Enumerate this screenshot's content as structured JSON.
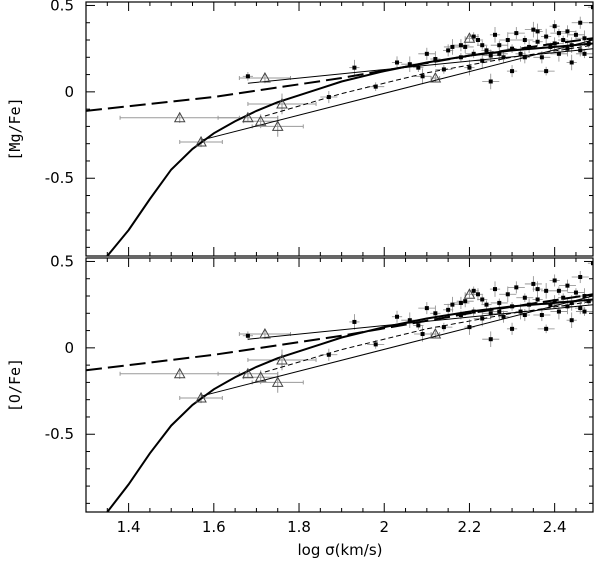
{
  "chart_data": [
    {
      "type": "scatter",
      "ylabel": "[Mg/Fe]",
      "xlim": [
        1.3,
        2.49
      ],
      "ylim": [
        -0.95,
        0.52
      ],
      "xticks": [
        "1.4",
        "1.6",
        "1.8",
        "2",
        "2.2",
        "2.4"
      ],
      "yticks": [
        "0.5",
        "0",
        "-0.5"
      ],
      "yticks_values": [
        0.5,
        0,
        -0.5
      ],
      "triangles": [
        {
          "x": 1.52,
          "y": -0.15,
          "xerr": 0.14,
          "yerr": 0.03
        },
        {
          "x": 1.57,
          "y": -0.29,
          "xerr": 0.05,
          "yerr": 0.03
        },
        {
          "x": 1.68,
          "y": -0.15,
          "xerr": 0.07,
          "yerr": 0.02
        },
        {
          "x": 1.71,
          "y": -0.17,
          "xerr": 0.04,
          "yerr": 0.04
        },
        {
          "x": 1.72,
          "y": 0.08,
          "xerr": 0.06,
          "yerr": 0.03
        },
        {
          "x": 1.75,
          "y": -0.2,
          "xerr": 0.06,
          "yerr": 0.06
        },
        {
          "x": 1.76,
          "y": -0.07,
          "xerr": 0.08,
          "yerr": 0.06
        },
        {
          "x": 2.12,
          "y": 0.08,
          "xerr": 0.01,
          "yerr": 0.02
        },
        {
          "x": 2.2,
          "y": 0.31,
          "xerr": 0.01,
          "yerr": 0.02
        }
      ],
      "points": [
        [
          1.68,
          0.09
        ],
        [
          1.87,
          -0.03
        ],
        [
          1.93,
          0.14
        ],
        [
          1.98,
          0.03
        ],
        [
          2.03,
          0.17
        ],
        [
          2.06,
          0.16
        ],
        [
          2.08,
          0.14
        ],
        [
          2.1,
          0.22
        ],
        [
          2.12,
          0.19
        ],
        [
          2.14,
          0.13
        ],
        [
          2.15,
          0.24
        ],
        [
          2.16,
          0.26
        ],
        [
          2.18,
          0.2
        ],
        [
          2.19,
          0.26
        ],
        [
          2.2,
          0.14
        ],
        [
          2.21,
          0.22
        ],
        [
          2.22,
          0.3
        ],
        [
          2.23,
          0.18
        ],
        [
          2.24,
          0.24
        ],
        [
          2.25,
          0.21
        ],
        [
          2.26,
          0.33
        ],
        [
          2.27,
          0.27
        ],
        [
          2.28,
          0.2
        ],
        [
          2.29,
          0.3
        ],
        [
          2.3,
          0.25
        ],
        [
          2.31,
          0.34
        ],
        [
          2.32,
          0.22
        ],
        [
          2.33,
          0.3
        ],
        [
          2.34,
          0.26
        ],
        [
          2.35,
          0.36
        ],
        [
          2.36,
          0.29
        ],
        [
          2.37,
          0.2
        ],
        [
          2.38,
          0.32
        ],
        [
          2.39,
          0.26
        ],
        [
          2.4,
          0.38
        ],
        [
          2.41,
          0.22
        ],
        [
          2.42,
          0.3
        ],
        [
          2.43,
          0.35
        ],
        [
          2.44,
          0.27
        ],
        [
          2.45,
          0.33
        ],
        [
          2.46,
          0.24
        ],
        [
          2.47,
          0.31
        ],
        [
          2.48,
          0.28
        ],
        [
          2.46,
          0.4
        ],
        [
          2.44,
          0.17
        ],
        [
          2.38,
          0.12
        ],
        [
          2.3,
          0.12
        ],
        [
          2.25,
          0.06
        ],
        [
          2.21,
          0.32
        ],
        [
          2.18,
          0.27
        ],
        [
          2.36,
          0.35
        ],
        [
          2.41,
          0.34
        ],
        [
          2.33,
          0.2
        ],
        [
          2.27,
          0.22
        ],
        [
          2.23,
          0.27
        ],
        [
          2.4,
          0.28
        ],
        [
          2.43,
          0.25
        ],
        [
          2.47,
          0.22
        ],
        [
          2.49,
          0.49
        ],
        [
          2.09,
          0.09
        ]
      ],
      "curve_thick": [
        [
          1.35,
          -0.95
        ],
        [
          1.4,
          -0.8
        ],
        [
          1.45,
          -0.62
        ],
        [
          1.5,
          -0.45
        ],
        [
          1.55,
          -0.33
        ],
        [
          1.6,
          -0.24
        ],
        [
          1.65,
          -0.17
        ],
        [
          1.7,
          -0.11
        ],
        [
          1.75,
          -0.06
        ],
        [
          1.8,
          -0.02
        ],
        [
          1.85,
          0.02
        ],
        [
          1.9,
          0.06
        ],
        [
          2.0,
          0.12
        ],
        [
          2.1,
          0.17
        ],
        [
          2.2,
          0.21
        ],
        [
          2.3,
          0.24
        ],
        [
          2.4,
          0.26
        ],
        [
          2.49,
          0.28
        ]
      ],
      "dashed_long": [
        [
          1.3,
          -0.11
        ],
        [
          1.6,
          -0.03
        ],
        [
          1.9,
          0.08
        ],
        [
          2.2,
          0.21
        ],
        [
          2.49,
          0.31
        ]
      ],
      "thin_line_a": [
        [
          1.57,
          -0.28
        ],
        [
          2.49,
          0.3
        ]
      ],
      "thin_line_b": [
        [
          1.68,
          0.05
        ],
        [
          2.49,
          0.25
        ]
      ],
      "dashed_thin": [
        [
          1.72,
          -0.14
        ],
        [
          1.9,
          -0.01
        ],
        [
          2.1,
          0.11
        ],
        [
          2.3,
          0.2
        ],
        [
          2.49,
          0.27
        ]
      ]
    },
    {
      "type": "scatter",
      "ylabel": "[O/Fe]",
      "xlabel": "log σ(km/s)",
      "xlim": [
        1.3,
        2.49
      ],
      "ylim": [
        -0.95,
        0.52
      ],
      "xticks": [
        "1.4",
        "1.6",
        "1.8",
        "2",
        "2.2",
        "2.4"
      ],
      "yticks": [
        "0.5",
        "0",
        "-0.5"
      ],
      "yticks_values": [
        0.5,
        0,
        -0.5
      ],
      "triangles": [
        {
          "x": 1.52,
          "y": -0.15,
          "xerr": 0.14,
          "yerr": 0.03
        },
        {
          "x": 1.57,
          "y": -0.29,
          "xerr": 0.05,
          "yerr": 0.03
        },
        {
          "x": 1.68,
          "y": -0.15,
          "xerr": 0.07,
          "yerr": 0.02
        },
        {
          "x": 1.71,
          "y": -0.17,
          "xerr": 0.04,
          "yerr": 0.04
        },
        {
          "x": 1.72,
          "y": 0.08,
          "xerr": 0.06,
          "yerr": 0.03
        },
        {
          "x": 1.75,
          "y": -0.2,
          "xerr": 0.06,
          "yerr": 0.06
        },
        {
          "x": 1.76,
          "y": -0.07,
          "xerr": 0.08,
          "yerr": 0.06
        },
        {
          "x": 2.12,
          "y": 0.08,
          "xerr": 0.01,
          "yerr": 0.02
        },
        {
          "x": 2.2,
          "y": 0.31,
          "xerr": 0.01,
          "yerr": 0.02
        }
      ],
      "points": [
        [
          1.68,
          0.07
        ],
        [
          1.87,
          -0.04
        ],
        [
          1.93,
          0.15
        ],
        [
          1.98,
          0.02
        ],
        [
          2.03,
          0.18
        ],
        [
          2.06,
          0.16
        ],
        [
          2.08,
          0.13
        ],
        [
          2.1,
          0.23
        ],
        [
          2.12,
          0.2
        ],
        [
          2.14,
          0.12
        ],
        [
          2.15,
          0.22
        ],
        [
          2.16,
          0.25
        ],
        [
          2.18,
          0.19
        ],
        [
          2.19,
          0.27
        ],
        [
          2.2,
          0.12
        ],
        [
          2.21,
          0.21
        ],
        [
          2.22,
          0.31
        ],
        [
          2.23,
          0.17
        ],
        [
          2.24,
          0.25
        ],
        [
          2.25,
          0.2
        ],
        [
          2.26,
          0.34
        ],
        [
          2.27,
          0.26
        ],
        [
          2.28,
          0.18
        ],
        [
          2.29,
          0.31
        ],
        [
          2.3,
          0.24
        ],
        [
          2.31,
          0.35
        ],
        [
          2.32,
          0.21
        ],
        [
          2.33,
          0.29
        ],
        [
          2.34,
          0.25
        ],
        [
          2.35,
          0.37
        ],
        [
          2.36,
          0.28
        ],
        [
          2.37,
          0.19
        ],
        [
          2.38,
          0.33
        ],
        [
          2.39,
          0.25
        ],
        [
          2.4,
          0.39
        ],
        [
          2.41,
          0.21
        ],
        [
          2.42,
          0.29
        ],
        [
          2.43,
          0.36
        ],
        [
          2.44,
          0.26
        ],
        [
          2.45,
          0.32
        ],
        [
          2.46,
          0.23
        ],
        [
          2.47,
          0.3
        ],
        [
          2.48,
          0.27
        ],
        [
          2.46,
          0.41
        ],
        [
          2.44,
          0.16
        ],
        [
          2.38,
          0.11
        ],
        [
          2.3,
          0.11
        ],
        [
          2.25,
          0.05
        ],
        [
          2.21,
          0.33
        ],
        [
          2.18,
          0.26
        ],
        [
          2.36,
          0.34
        ],
        [
          2.41,
          0.33
        ],
        [
          2.33,
          0.19
        ],
        [
          2.27,
          0.21
        ],
        [
          2.23,
          0.28
        ],
        [
          2.4,
          0.27
        ],
        [
          2.43,
          0.24
        ],
        [
          2.47,
          0.21
        ],
        [
          2.49,
          0.49
        ],
        [
          2.09,
          0.08
        ]
      ],
      "curve_thick": [
        [
          1.35,
          -0.95
        ],
        [
          1.4,
          -0.79
        ],
        [
          1.45,
          -0.61
        ],
        [
          1.5,
          -0.45
        ],
        [
          1.55,
          -0.33
        ],
        [
          1.6,
          -0.24
        ],
        [
          1.65,
          -0.17
        ],
        [
          1.7,
          -0.11
        ],
        [
          1.75,
          -0.06
        ],
        [
          1.8,
          -0.02
        ],
        [
          1.85,
          0.02
        ],
        [
          1.9,
          0.06
        ],
        [
          2.0,
          0.12
        ],
        [
          2.1,
          0.17
        ],
        [
          2.2,
          0.21
        ],
        [
          2.3,
          0.24
        ],
        [
          2.4,
          0.26
        ],
        [
          2.49,
          0.28
        ]
      ],
      "dashed_long": [
        [
          1.3,
          -0.13
        ],
        [
          1.6,
          -0.04
        ],
        [
          1.9,
          0.07
        ],
        [
          2.2,
          0.2
        ],
        [
          2.49,
          0.31
        ]
      ],
      "thin_line_a": [
        [
          1.57,
          -0.28
        ],
        [
          2.49,
          0.3
        ]
      ],
      "thin_line_b": [
        [
          1.68,
          0.05
        ],
        [
          2.49,
          0.25
        ]
      ],
      "dashed_thin": [
        [
          1.72,
          -0.14
        ],
        [
          1.9,
          -0.01
        ],
        [
          2.1,
          0.11
        ],
        [
          2.3,
          0.2
        ],
        [
          2.49,
          0.27
        ]
      ]
    }
  ]
}
